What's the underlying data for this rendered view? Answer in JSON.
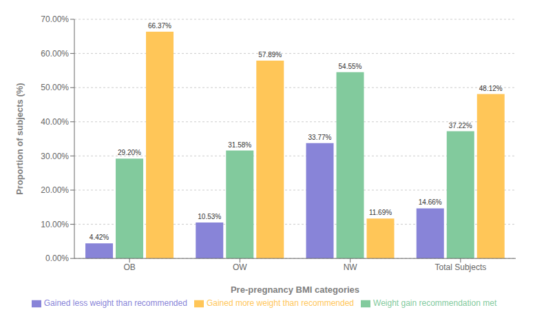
{
  "chart_data": {
    "type": "bar",
    "categories": [
      "OB",
      "OW",
      "NW",
      "Total Subjects"
    ],
    "series": [
      {
        "name": "Gained less weight than recommended",
        "color": "#8884d8",
        "values": [
          4.42,
          10.53,
          33.77,
          14.66
        ],
        "value_labels": [
          "4.42%",
          "10.53%",
          "33.77%",
          "14.66%"
        ]
      },
      {
        "name": "Weight gain recommendation met",
        "color": "#82ca9d",
        "values": [
          29.2,
          31.58,
          54.55,
          37.22
        ],
        "value_labels": [
          "29.20%",
          "31.58%",
          "54.55%",
          "37.22%"
        ]
      },
      {
        "name": "Gained more weight than recommended",
        "color": "#ffc658",
        "values": [
          66.37,
          57.89,
          11.69,
          48.12
        ],
        "value_labels": [
          "66.37%",
          "57.89%",
          "11.69%",
          "48.12%"
        ]
      }
    ],
    "xlabel": "Pre-pregnancy BMI categories",
    "ylabel": "Proportion of subjects (%)",
    "ylim": [
      0,
      70
    ],
    "yticks": [
      {
        "value": 0,
        "label": "0.00%"
      },
      {
        "value": 10,
        "label": "10.00%"
      },
      {
        "value": 20,
        "label": "20.00%"
      },
      {
        "value": 30,
        "label": "30.00%"
      },
      {
        "value": 40,
        "label": "40.00%"
      },
      {
        "value": 50,
        "label": "50.00%"
      },
      {
        "value": 60,
        "label": "60.00%"
      },
      {
        "value": 70,
        "label": "70.00%"
      }
    ],
    "grid": true,
    "legend": "bottom",
    "data_labels": true
  }
}
